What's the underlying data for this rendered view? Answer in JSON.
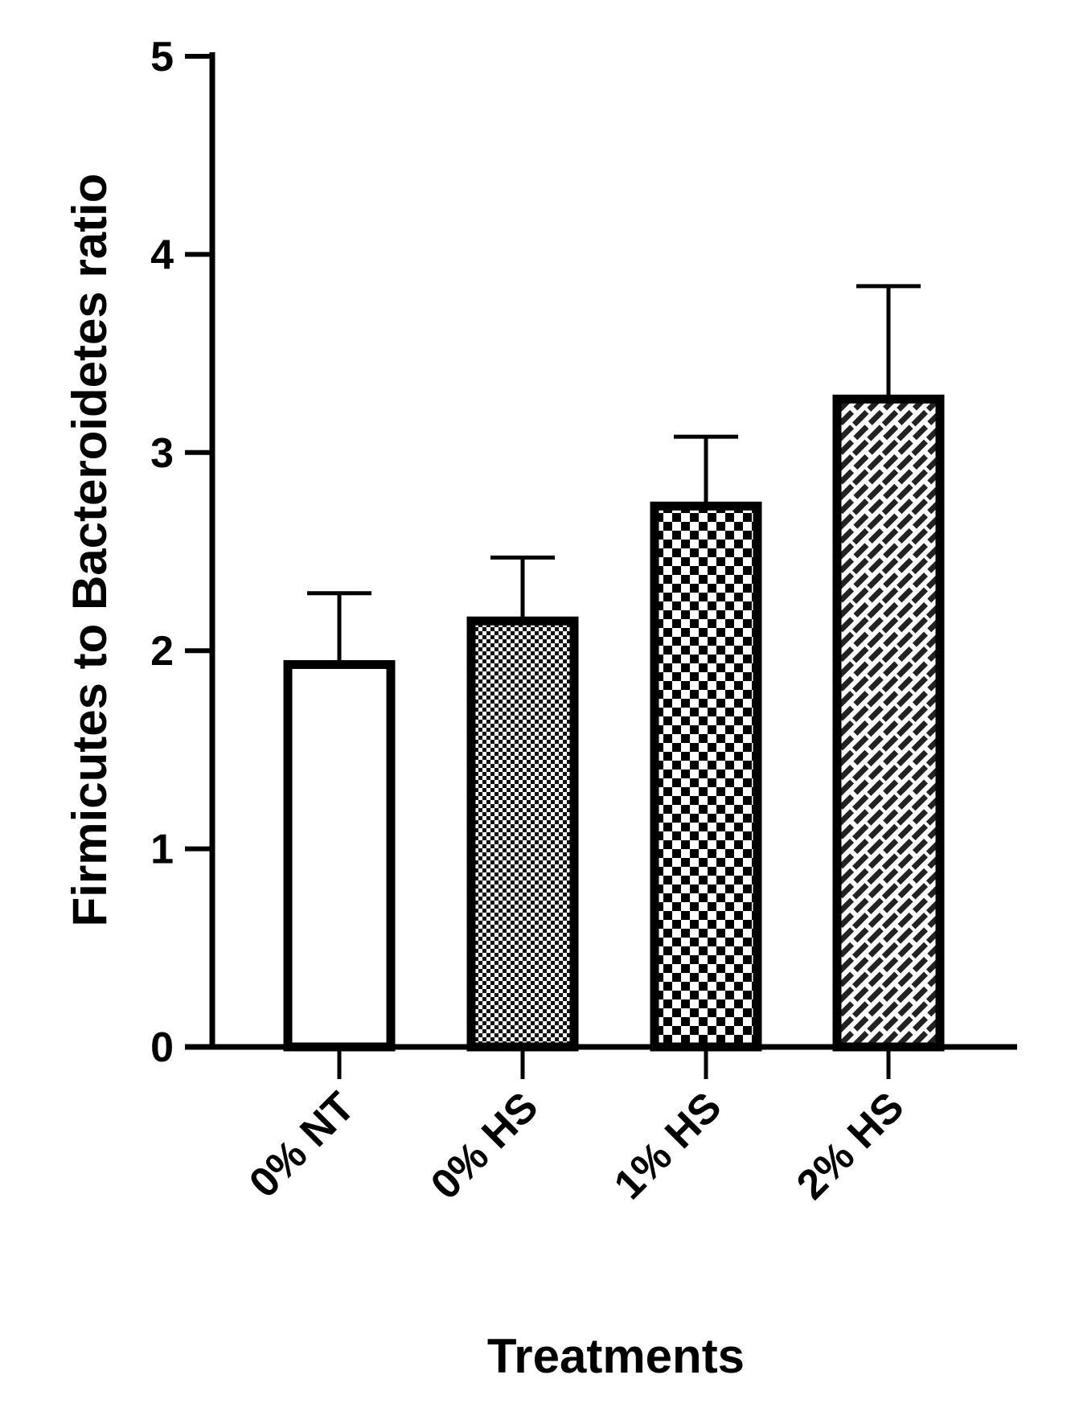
{
  "chart_data": {
    "type": "bar",
    "categories": [
      "0% NT",
      "0% HS",
      "1% HS",
      "2% HS"
    ],
    "values": [
      1.93,
      2.15,
      2.73,
      3.27
    ],
    "errors": [
      0.36,
      0.32,
      0.35,
      0.57
    ],
    "patterns": [
      "none",
      "fine-checker",
      "checker",
      "diagonal-brick"
    ],
    "xlabel": "Treatments",
    "ylabel": "Firmicutes to Bacteroidetes ratio",
    "ylim": [
      0,
      5
    ],
    "yticks": [
      "0",
      "1",
      "2",
      "3",
      "4",
      "5"
    ],
    "grid": false,
    "legend": "none",
    "colors": {
      "stroke": "#000000",
      "fill": "#ffffff"
    }
  }
}
